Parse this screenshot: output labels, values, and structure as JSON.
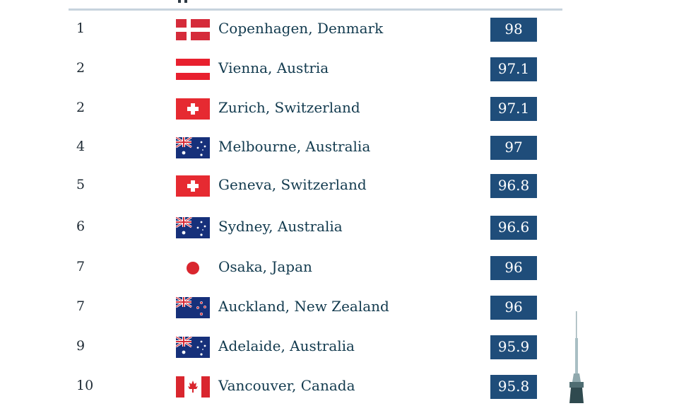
{
  "rows": [
    {
      "rank": "1",
      "city": "Copenhagen, Denmark",
      "score": "98",
      "flag": "denmark-flag"
    },
    {
      "rank": "2",
      "city": "Vienna, Austria",
      "score": "97.1",
      "flag": "austria-flag"
    },
    {
      "rank": "2",
      "city": "Zurich, Switzerland",
      "score": "97.1",
      "flag": "switzerland-flag"
    },
    {
      "rank": "4",
      "city": "Melbourne, Australia",
      "score": "97",
      "flag": "australia-flag"
    },
    {
      "rank": "5",
      "city": "Geneva, Switzerland",
      "score": "96.8",
      "flag": "switzerland-flag"
    },
    {
      "rank": "6",
      "city": "Sydney, Australia",
      "score": "96.6",
      "flag": "australia-flag"
    },
    {
      "rank": "7",
      "city": "Osaka, Japan",
      "score": "96",
      "flag": "japan-flag"
    },
    {
      "rank": "7",
      "city": "Auckland, New Zealand",
      "score": "96",
      "flag": "new-zealand-flag"
    },
    {
      "rank": "9",
      "city": "Adelaide, Australia",
      "score": "95.9",
      "flag": "australia-flag"
    },
    {
      "rank": "10",
      "city": "Vancouver, Canada",
      "score": "95.8",
      "flag": "canada-flag"
    }
  ],
  "colors": {
    "score_badge": "#1f4d7a",
    "city_text": "#123a4e",
    "rank_text": "#1f2b35",
    "rule": "#c7d3dd"
  }
}
